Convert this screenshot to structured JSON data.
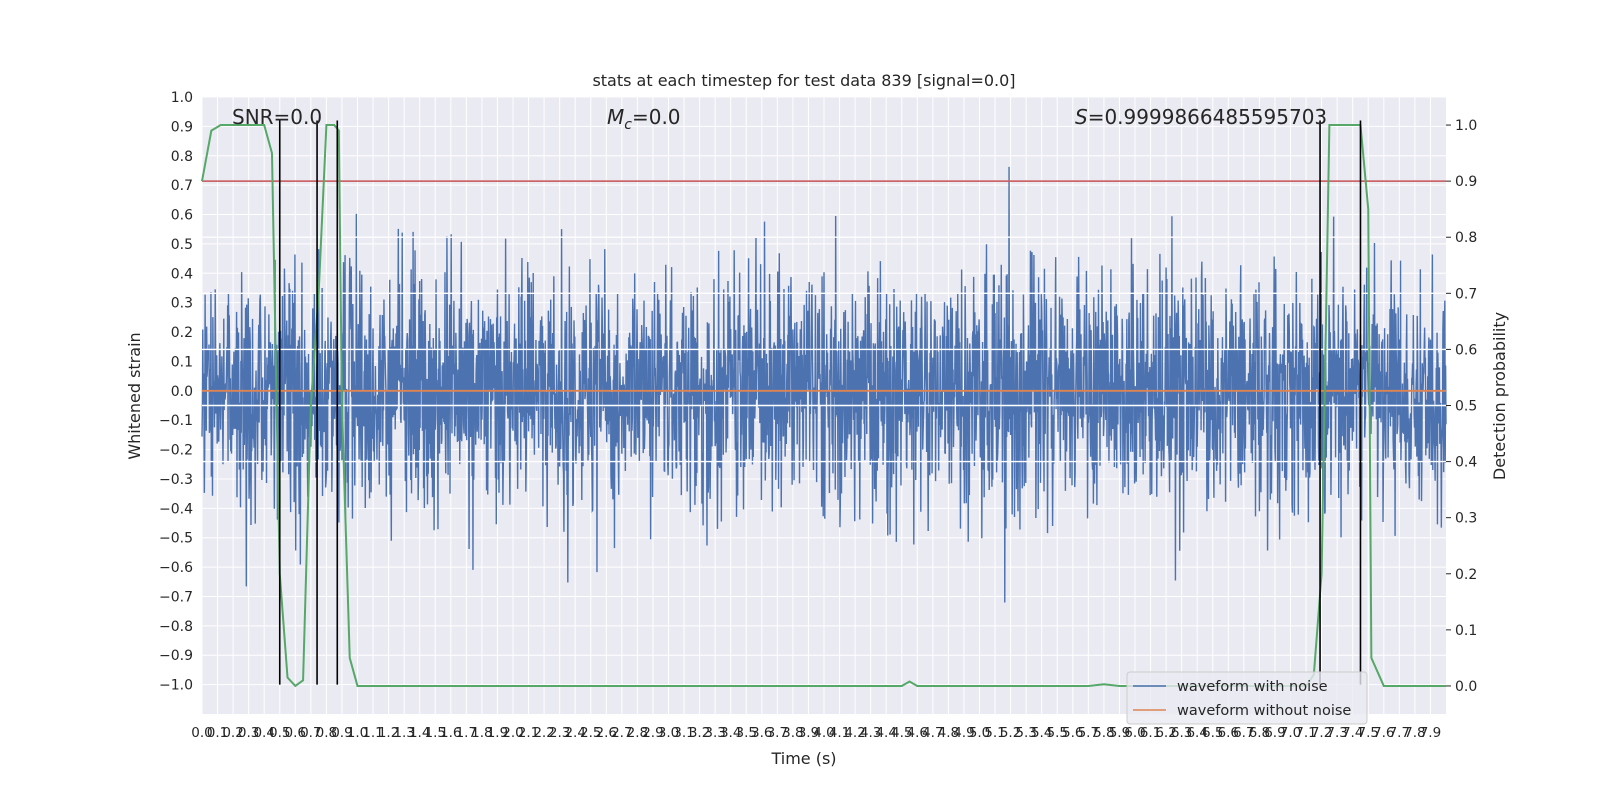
{
  "chart_data": {
    "type": "line",
    "title": "stats at each timestep for test data 839 [signal=0.0]",
    "xlabel": "Time (s)",
    "ylabel": "Whitened strain",
    "ylabel_right": "Detection probability",
    "xlim": [
      0.0,
      8.0
    ],
    "ylim": [
      -1.1,
      1.0
    ],
    "ylim_right": [
      -0.05,
      1.05
    ],
    "yticks": [
      "−1.0",
      "−0.9",
      "−0.8",
      "−0.7",
      "−0.6",
      "−0.5",
      "−0.4",
      "−0.3",
      "−0.2",
      "−0.1",
      "0.0",
      "0.1",
      "0.2",
      "0.3",
      "0.4",
      "0.5",
      "0.6",
      "0.7",
      "0.8",
      "0.9",
      "1.0"
    ],
    "yticks_right": [
      "0.0",
      "0.1",
      "0.2",
      "0.3",
      "0.4",
      "0.5",
      "0.6",
      "0.7",
      "0.8",
      "0.9",
      "1.0"
    ],
    "xticks": [
      "0.0",
      "0.1",
      "0.2",
      "0.3",
      "0.4",
      "0.5",
      "0.6",
      "0.7",
      "0.8",
      "0.9",
      "1.0",
      "1.1",
      "1.2",
      "1.3",
      "1.4",
      "1.5",
      "1.6",
      "1.7",
      "1.8",
      "1.9",
      "2.0",
      "2.1",
      "2.2",
      "2.3",
      "2.4",
      "2.5",
      "2.6",
      "2.7",
      "2.8",
      "2.9",
      "3.0",
      "3.1",
      "3.2",
      "3.3",
      "3.4",
      "3.5",
      "3.6",
      "3.7",
      "3.8",
      "3.9",
      "4.0",
      "4.1",
      "4.2",
      "4.3",
      "4.4",
      "4.5",
      "4.6",
      "4.7",
      "4.8",
      "4.9",
      "5.0",
      "5.1",
      "5.2",
      "5.3",
      "5.4",
      "5.5",
      "5.6",
      "5.7",
      "5.8",
      "5.9",
      "6.0",
      "6.1",
      "6.2",
      "6.3",
      "6.4",
      "6.5",
      "6.6",
      "6.7",
      "6.8",
      "6.9",
      "7.0",
      "7.1",
      "7.2",
      "7.3",
      "7.4",
      "7.5",
      "7.6",
      "7.7",
      "7.8",
      "7.9"
    ],
    "grid": true,
    "legend_placement": "lower-right",
    "annotations": {
      "snr": "SNR=0.0",
      "mc_symbol": "M",
      "mc_sub": "c",
      "mc_value": "=0.0",
      "s_symbol": "S",
      "s_value": "=0.9999866485595703"
    },
    "series": [
      {
        "name": "waveform with noise",
        "color": "#4c72b0",
        "axis": "left",
        "description_values": "dense noise, band roughly ±0.3 with spikes to about ±0.8",
        "envelope_x": [
          0.0,
          0.5,
          1.0,
          1.5,
          2.0,
          2.5,
          3.0,
          3.5,
          4.0,
          4.5,
          5.0,
          5.5,
          6.0,
          6.5,
          7.0,
          7.5,
          8.0
        ],
        "envelope_max": [
          0.72,
          0.75,
          0.6,
          0.8,
          0.6,
          0.78,
          0.76,
          0.72,
          0.75,
          0.78,
          0.8,
          0.7,
          0.82,
          0.7,
          0.8,
          0.7,
          0.7
        ],
        "envelope_min": [
          -0.98,
          -0.86,
          -0.8,
          -0.75,
          -1.0,
          -0.7,
          -0.8,
          -0.8,
          -0.85,
          -0.9,
          -0.75,
          -0.7,
          -0.75,
          -0.8,
          -0.8,
          -0.8,
          -0.8
        ]
      },
      {
        "name": "waveform without noise",
        "color": "#dd8452",
        "axis": "left",
        "x": [
          0.0,
          8.0
        ],
        "y": [
          0.0,
          0.0
        ]
      },
      {
        "name": "",
        "color": "#55a868",
        "axis": "right",
        "x": [
          0.0,
          0.06,
          0.12,
          0.2,
          0.3,
          0.4,
          0.45,
          0.5,
          0.55,
          0.6,
          0.65,
          0.7,
          0.75,
          0.8,
          0.85,
          0.88,
          0.9,
          0.95,
          1.0,
          4.4,
          4.5,
          4.55,
          4.6,
          5.7,
          5.8,
          5.9,
          6.0,
          7.1,
          7.15,
          7.2,
          7.25,
          7.3,
          7.45,
          7.5,
          7.52,
          7.6,
          7.7,
          8.0
        ],
        "y": [
          0.9,
          0.99,
          1.0,
          1.0,
          1.0,
          1.0,
          0.95,
          0.2,
          0.015,
          0.0,
          0.01,
          0.5,
          0.7,
          1.0,
          1.0,
          0.99,
          0.5,
          0.05,
          0.0,
          0.0,
          0.0,
          0.008,
          0.0,
          0.0,
          0.003,
          0.0,
          0.0,
          0.0,
          0.02,
          0.2,
          1.0,
          1.0,
          1.0,
          0.85,
          0.05,
          0.0,
          0.0,
          0.0
        ]
      },
      {
        "name": "",
        "color": "#c44e52",
        "axis": "right",
        "x": [
          0.0,
          8.0
        ],
        "y": [
          0.9,
          0.9
        ]
      }
    ],
    "vlines": {
      "color": "#000000",
      "x": [
        0.5,
        0.74,
        0.87,
        7.19,
        7.45
      ],
      "ymin": [
        -1.0,
        -1.0,
        -1.0,
        -1.0,
        -1.0
      ],
      "ymax": [
        0.92,
        0.92,
        0.92,
        0.92,
        0.92
      ]
    },
    "white_hlines_right_axis": [
      0.4,
      0.5,
      0.6,
      0.7,
      0.8,
      0.9
    ]
  }
}
